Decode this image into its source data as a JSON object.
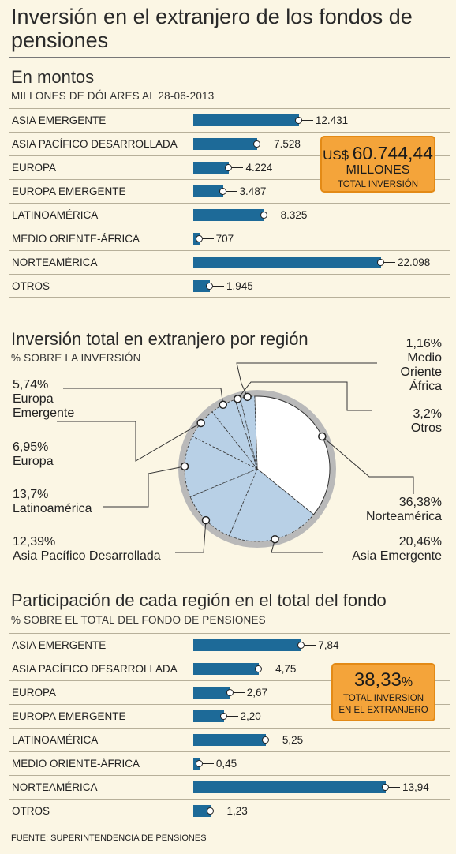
{
  "title": "Inversión en el extranjero de los fondos de pensiones",
  "source": "FUENTE: SUPERINTENDENCIA DE PENSIONES",
  "chart_data": [
    {
      "type": "bar",
      "title": "En montos",
      "subtitle": "MILLONES DE DÓLARES AL 28-06-2013",
      "categories": [
        "ASIA EMERGENTE",
        "ASIA PACÍFICO DESARROLLADA",
        "EUROPA",
        "EUROPA EMERGENTE",
        "LATINOAMÉRICA",
        "MEDIO ORIENTE-ÁFRICA",
        "NORTEAMÉRICA",
        "OTROS"
      ],
      "values": [
        12431,
        7528,
        4224,
        3487,
        8325,
        707,
        22098,
        1945
      ],
      "value_labels": [
        "12.431",
        "7.528",
        "4.224",
        "3.487",
        "8.325",
        "707",
        "22.098",
        "1.945"
      ],
      "bar_color": "#1d6a98",
      "callout": {
        "prefix": "US$",
        "amount": "60.744,44",
        "unit": "MILLONES",
        "caption": "TOTAL INVERSIÓN"
      }
    },
    {
      "type": "pie",
      "title": "Inversión total en extranjero por región",
      "subtitle": "% SOBRE LA INVERSIÓN",
      "slices": [
        {
          "label": "Norteamérica",
          "value": 36.38,
          "display": "36,38%"
        },
        {
          "label": "Asia Emergente",
          "value": 20.46,
          "display": "20,46%"
        },
        {
          "label": "Asia Pacífico Desarrollada",
          "value": 12.39,
          "display": "12,39%"
        },
        {
          "label": "Latinoamérica",
          "value": 13.7,
          "display": "13,7%"
        },
        {
          "label": "Europa",
          "value": 6.95,
          "display": "6,95%"
        },
        {
          "label": "Europa Emergente",
          "value": 5.74,
          "display": "5,74%"
        },
        {
          "label": "Medio Oriente África",
          "value": 1.16,
          "display": "1,16%"
        },
        {
          "label": "Otros",
          "value": 3.2,
          "display": "3,2%"
        }
      ],
      "labels": {
        "norteamerica": {
          "pct": "36,38%",
          "name": "Norteamérica"
        },
        "asia_emergente": {
          "pct": "20,46%",
          "name": "Asia Emergente"
        },
        "asia_pacifico": {
          "pct": "12,39%",
          "name": "Asia Pacífico Desarrollada"
        },
        "latinoamerica": {
          "pct": "13,7%",
          "name": "Latinoamérica"
        },
        "europa": {
          "pct": "6,95%",
          "name": "Europa"
        },
        "europa_emergente": {
          "pct": "5,74%",
          "name_1": "Europa",
          "name_2": "Emergente"
        },
        "medio_oriente": {
          "pct": "1,16%",
          "name_1": "Medio",
          "name_2": "Oriente",
          "name_3": "África"
        },
        "otros": {
          "pct": "3,2%",
          "name": "Otros"
        }
      },
      "colors": {
        "norteamerica": "#ffffff",
        "others": "#b8d0e6",
        "ring": "#b9b9b9"
      }
    },
    {
      "type": "bar",
      "title": "Participación de cada región en el total del fondo",
      "subtitle": "% SOBRE EL TOTAL DEL FONDO DE PENSIONES",
      "categories": [
        "ASIA EMERGENTE",
        "ASIA PACÍFICO DESARROLLADA",
        "EUROPA",
        "EUROPA EMERGENTE",
        "LATINOAMÉRICA",
        "MEDIO ORIENTE-ÁFRICA",
        "NORTEAMÉRICA",
        "OTROS"
      ],
      "values": [
        7.84,
        4.75,
        2.67,
        2.2,
        5.25,
        0.45,
        13.94,
        1.23
      ],
      "value_labels": [
        "7,84",
        "4,75",
        "2,67",
        "2,20",
        "5,25",
        "0,45",
        "13,94",
        "1,23"
      ],
      "bar_color": "#1d6a98",
      "callout": {
        "amount": "38,33",
        "suffix": "%",
        "caption_1": "TOTAL INVERSION",
        "caption_2": "EN EL EXTRANJERO"
      }
    }
  ]
}
